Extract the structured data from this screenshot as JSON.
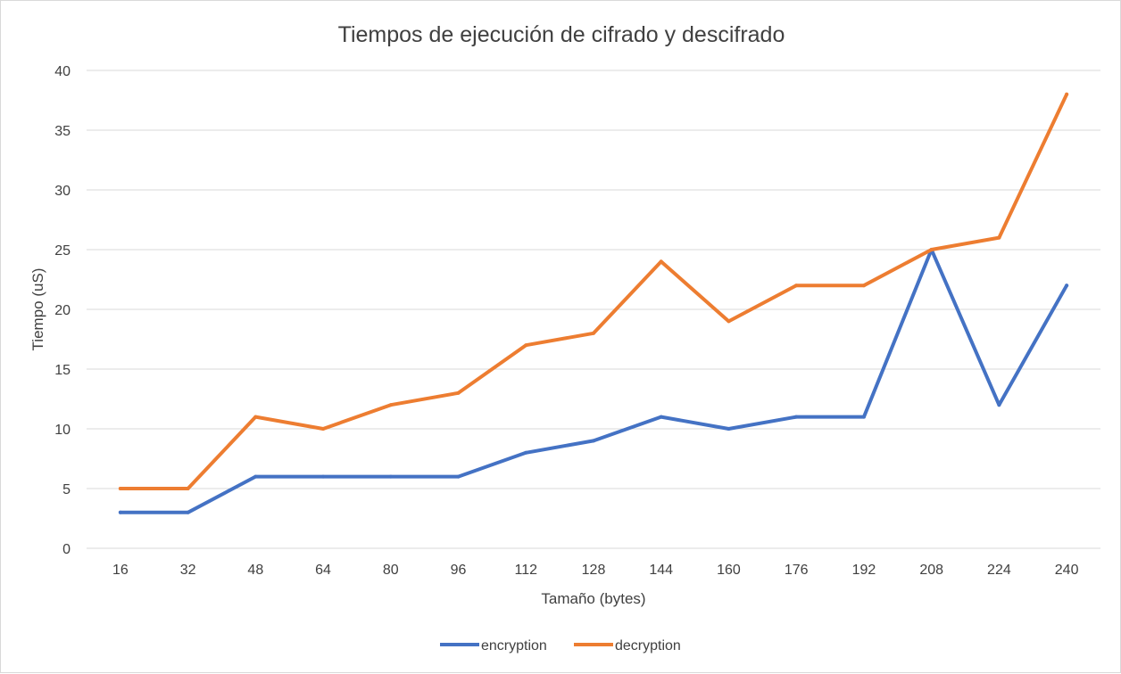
{
  "chart_data": {
    "type": "line",
    "title": "Tiempos de ejecución de cifrado y descifrado",
    "xlabel": "Tamaño (bytes)",
    "ylabel": "Tiempo (uS)",
    "categories": [
      "16",
      "32",
      "48",
      "64",
      "80",
      "96",
      "112",
      "128",
      "144",
      "160",
      "176",
      "192",
      "208",
      "224",
      "240"
    ],
    "ylim": [
      0,
      40
    ],
    "yticks": [
      "0",
      "5",
      "10",
      "15",
      "20",
      "25",
      "30",
      "35",
      "40"
    ],
    "grid": true,
    "legend_position": "bottom",
    "series": [
      {
        "name": "encryption",
        "color": "#4472c4",
        "values": [
          3,
          3,
          6,
          6,
          6,
          6,
          8,
          9,
          11,
          10,
          11,
          11,
          25,
          12,
          22
        ]
      },
      {
        "name": "decryption",
        "color": "#ed7d31",
        "values": [
          5,
          5,
          11,
          10,
          12,
          13,
          17,
          18,
          24,
          19,
          22,
          22,
          25,
          26,
          38
        ]
      }
    ]
  }
}
